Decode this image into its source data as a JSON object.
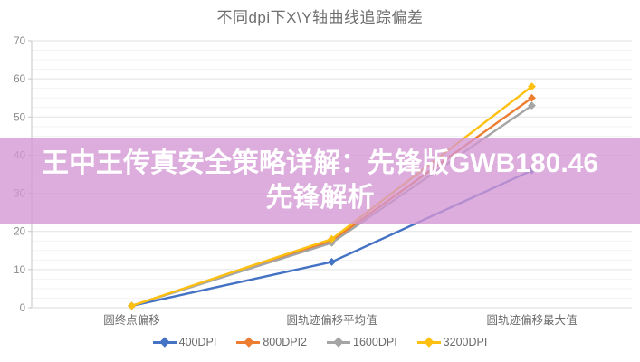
{
  "title": "不同dpi下X\\Y轴曲线追踪偏差",
  "overlay": {
    "text": "王中王传真安全策略详解：先锋版GWB180.46先锋解析",
    "background_color": "#d396d4",
    "text_color": "#ffffff"
  },
  "chart_data": {
    "type": "line",
    "title": "不同dpi下X\\Y轴曲线追踪偏差",
    "categories": [
      "圆终点偏移",
      "圆轨迹偏移平均值",
      "圆轨迹偏移最大值"
    ],
    "series": [
      {
        "name": "400DPI",
        "color": "#4472c4",
        "values": [
          0.5,
          12,
          36
        ]
      },
      {
        "name": "800DPI2",
        "color": "#ed7d31",
        "values": [
          0.5,
          17.5,
          55
        ]
      },
      {
        "name": "1600DPI",
        "color": "#a5a5a5",
        "values": [
          0.5,
          17,
          53
        ]
      },
      {
        "name": "3200DPI",
        "color": "#fdc010",
        "values": [
          0.5,
          18,
          58
        ]
      }
    ],
    "xlabel": "",
    "ylabel": "",
    "ylim": [
      0,
      70
    ],
    "y_major_step": 10,
    "y_minor_step": 2.5,
    "grid": true,
    "legend_position": "bottom",
    "marker": "diamond"
  }
}
